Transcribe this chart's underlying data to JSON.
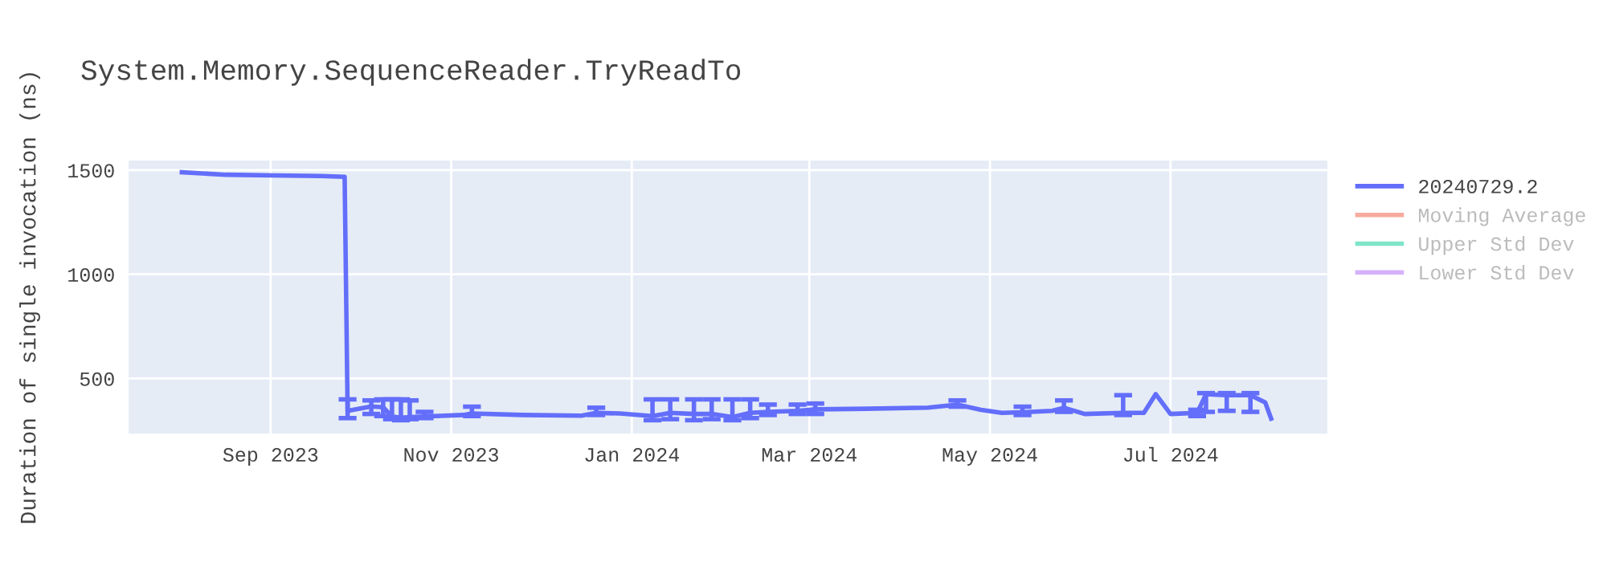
{
  "chart_data": {
    "type": "line",
    "title": "System.Memory.SequenceReader.TryReadTo",
    "ylabel": "Duration of single invocation (ns)",
    "x": [
      "2023-08-02",
      "2023-08-17",
      "2023-09-02",
      "2023-09-18",
      "2023-09-26",
      "2023-09-27",
      "2023-10-05",
      "2023-10-09",
      "2023-10-12",
      "2023-10-15",
      "2023-10-18",
      "2023-10-23",
      "2023-11-05",
      "2023-11-08",
      "2023-11-25",
      "2023-12-15",
      "2023-12-20",
      "2023-12-28",
      "2024-01-08",
      "2024-01-14",
      "2024-01-22",
      "2024-01-28",
      "2024-02-04",
      "2024-02-10",
      "2024-02-16",
      "2024-02-26",
      "2024-03-03",
      "2024-03-20",
      "2024-04-10",
      "2024-04-20",
      "2024-04-28",
      "2024-05-05",
      "2024-05-12",
      "2024-05-22",
      "2024-05-26",
      "2024-06-02",
      "2024-06-15",
      "2024-06-22",
      "2024-06-26",
      "2024-07-01",
      "2024-07-10",
      "2024-07-13",
      "2024-07-20",
      "2024-07-28",
      "2024-08-02",
      "2024-08-04"
    ],
    "series": [
      {
        "name": "20240729.2",
        "color": "#636efa",
        "values": [
          1490,
          1478,
          1475,
          1472,
          1468,
          345,
          366,
          362,
          318,
          312,
          315,
          318,
          325,
          332,
          325,
          322,
          335,
          332,
          320,
          335,
          330,
          330,
          315,
          335,
          340,
          345,
          352,
          355,
          360,
          375,
          350,
          335,
          338,
          345,
          360,
          330,
          335,
          335,
          425,
          330,
          335,
          425,
          420,
          420,
          385,
          308
        ],
        "errors": [
          null,
          null,
          null,
          null,
          null,
          [
            310,
            400
          ],
          [
            330,
            395
          ],
          [
            320,
            400
          ],
          [
            305,
            400
          ],
          [
            300,
            400
          ],
          [
            305,
            395
          ],
          [
            310,
            340
          ],
          null,
          [
            320,
            365
          ],
          null,
          null,
          [
            325,
            360
          ],
          null,
          [
            300,
            400
          ],
          [
            305,
            400
          ],
          [
            300,
            400
          ],
          [
            305,
            400
          ],
          [
            300,
            400
          ],
          [
            310,
            400
          ],
          [
            325,
            375
          ],
          [
            330,
            375
          ],
          [
            330,
            380
          ],
          null,
          null,
          [
            365,
            395
          ],
          null,
          null,
          [
            325,
            365
          ],
          null,
          [
            340,
            395
          ],
          null,
          [
            325,
            420
          ],
          null,
          null,
          null,
          [
            320,
            350
          ],
          [
            340,
            430
          ],
          [
            345,
            430
          ],
          [
            340,
            430
          ],
          null,
          null
        ]
      },
      {
        "name": "Moving Average",
        "color": "#ef553b",
        "values": [
          null,
          null,
          null,
          null,
          null,
          null,
          null,
          null,
          null,
          null,
          null,
          null,
          null,
          null,
          null,
          null,
          null,
          null,
          null,
          null,
          null,
          null,
          null,
          null,
          null,
          null,
          null,
          null,
          null,
          null,
          null,
          null,
          null,
          null,
          null,
          null,
          null,
          null,
          null,
          null,
          null,
          null,
          null,
          null,
          null,
          null
        ]
      },
      {
        "name": "Upper Std Dev",
        "color": "#00cc96",
        "values": [
          null,
          null,
          null,
          null,
          null,
          null,
          null,
          null,
          null,
          null,
          null,
          null,
          null,
          null,
          null,
          null,
          null,
          null,
          null,
          null,
          null,
          null,
          null,
          null,
          null,
          null,
          null,
          null,
          null,
          null,
          null,
          null,
          null,
          null,
          null,
          null,
          null,
          null,
          null,
          null,
          null,
          null,
          null,
          null,
          null,
          null
        ]
      },
      {
        "name": "Lower Std Dev",
        "color": "#ab63fa",
        "values": [
          null,
          null,
          null,
          null,
          null,
          null,
          null,
          null,
          null,
          null,
          null,
          null,
          null,
          null,
          null,
          null,
          null,
          null,
          null,
          null,
          null,
          null,
          null,
          null,
          null,
          null,
          null,
          null,
          null,
          null,
          null,
          null,
          null,
          null,
          null,
          null,
          null,
          null,
          null,
          null,
          null,
          null,
          null,
          null,
          null,
          null
        ]
      }
    ],
    "xlim": [
      "2023-07-15",
      "2024-08-23"
    ],
    "xticks": [
      {
        "value": "2023-09-01",
        "label": "Sep 2023"
      },
      {
        "value": "2023-11-01",
        "label": "Nov 2023"
      },
      {
        "value": "2024-01-01",
        "label": "Jan 2024"
      },
      {
        "value": "2024-03-01",
        "label": "Mar 2024"
      },
      {
        "value": "2024-05-01",
        "label": "May 2024"
      },
      {
        "value": "2024-07-01",
        "label": "Jul 2024"
      }
    ],
    "ylim": [
      236,
      1546
    ],
    "yticks": [
      500,
      1000,
      1500
    ],
    "grid": true,
    "legend": "top right",
    "marker": "none",
    "line_style": "solid"
  }
}
